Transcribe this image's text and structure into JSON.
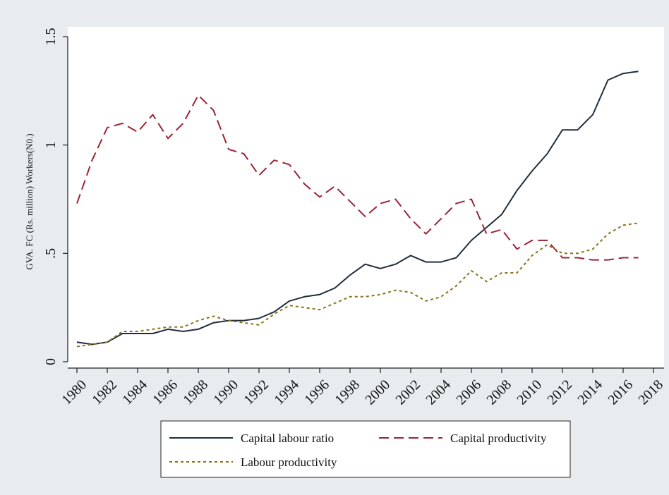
{
  "chart_data": {
    "type": "line",
    "ylabel": "GVA. FC (Rs. million) Workers(N0.)",
    "xlabel": "",
    "xlim": [
      1980,
      2018
    ],
    "ylim": [
      0,
      1.5
    ],
    "y_ticks": [
      {
        "value": 0,
        "label": "0"
      },
      {
        "value": 0.5,
        "label": ".5"
      },
      {
        "value": 1,
        "label": "1"
      },
      {
        "value": 1.5,
        "label": "1.5"
      }
    ],
    "x_ticks": [
      1980,
      1982,
      1984,
      1986,
      1988,
      1990,
      1992,
      1994,
      1996,
      1998,
      2000,
      2002,
      2004,
      2006,
      2008,
      2010,
      2012,
      2014,
      2016,
      2018
    ],
    "grid": false,
    "legend_position": "bottom",
    "x": [
      1980,
      1981,
      1982,
      1983,
      1984,
      1985,
      1986,
      1987,
      1988,
      1989,
      1990,
      1991,
      1992,
      1993,
      1994,
      1995,
      1996,
      1997,
      1998,
      1999,
      2000,
      2001,
      2002,
      2003,
      2004,
      2005,
      2006,
      2007,
      2008,
      2009,
      2010,
      2011,
      2012,
      2013,
      2014,
      2015,
      2016,
      2017
    ],
    "series": [
      {
        "name": "Capital labour ratio",
        "color": "#1f2d3d",
        "dash": "solid",
        "values": [
          0.09,
          0.08,
          0.09,
          0.13,
          0.13,
          0.13,
          0.15,
          0.14,
          0.15,
          0.18,
          0.19,
          0.19,
          0.2,
          0.23,
          0.28,
          0.3,
          0.31,
          0.34,
          0.4,
          0.45,
          0.43,
          0.45,
          0.49,
          0.46,
          0.46,
          0.48,
          0.56,
          0.62,
          0.68,
          0.79,
          0.88,
          0.96,
          1.07,
          1.07,
          1.14,
          1.3,
          1.33,
          1.34
        ]
      },
      {
        "name": "Capital productivity",
        "color": "#9b2335",
        "dash": "long-dash",
        "values": [
          0.73,
          0.93,
          1.08,
          1.1,
          1.06,
          1.14,
          1.03,
          1.1,
          1.23,
          1.16,
          0.98,
          0.96,
          0.86,
          0.93,
          0.91,
          0.82,
          0.76,
          0.81,
          0.74,
          0.67,
          0.73,
          0.75,
          0.66,
          0.59,
          0.66,
          0.73,
          0.75,
          0.59,
          0.61,
          0.52,
          0.56,
          0.56,
          0.48,
          0.48,
          0.47,
          0.47,
          0.48,
          0.48
        ]
      },
      {
        "name": "Labour productivity",
        "color": "#8a7318",
        "dash": "short-dash",
        "values": [
          0.07,
          0.08,
          0.09,
          0.14,
          0.14,
          0.15,
          0.16,
          0.16,
          0.19,
          0.21,
          0.19,
          0.18,
          0.17,
          0.22,
          0.26,
          0.25,
          0.24,
          0.27,
          0.3,
          0.3,
          0.31,
          0.33,
          0.32,
          0.28,
          0.3,
          0.35,
          0.42,
          0.37,
          0.41,
          0.41,
          0.49,
          0.54,
          0.5,
          0.5,
          0.52,
          0.59,
          0.63,
          0.64
        ]
      }
    ]
  }
}
